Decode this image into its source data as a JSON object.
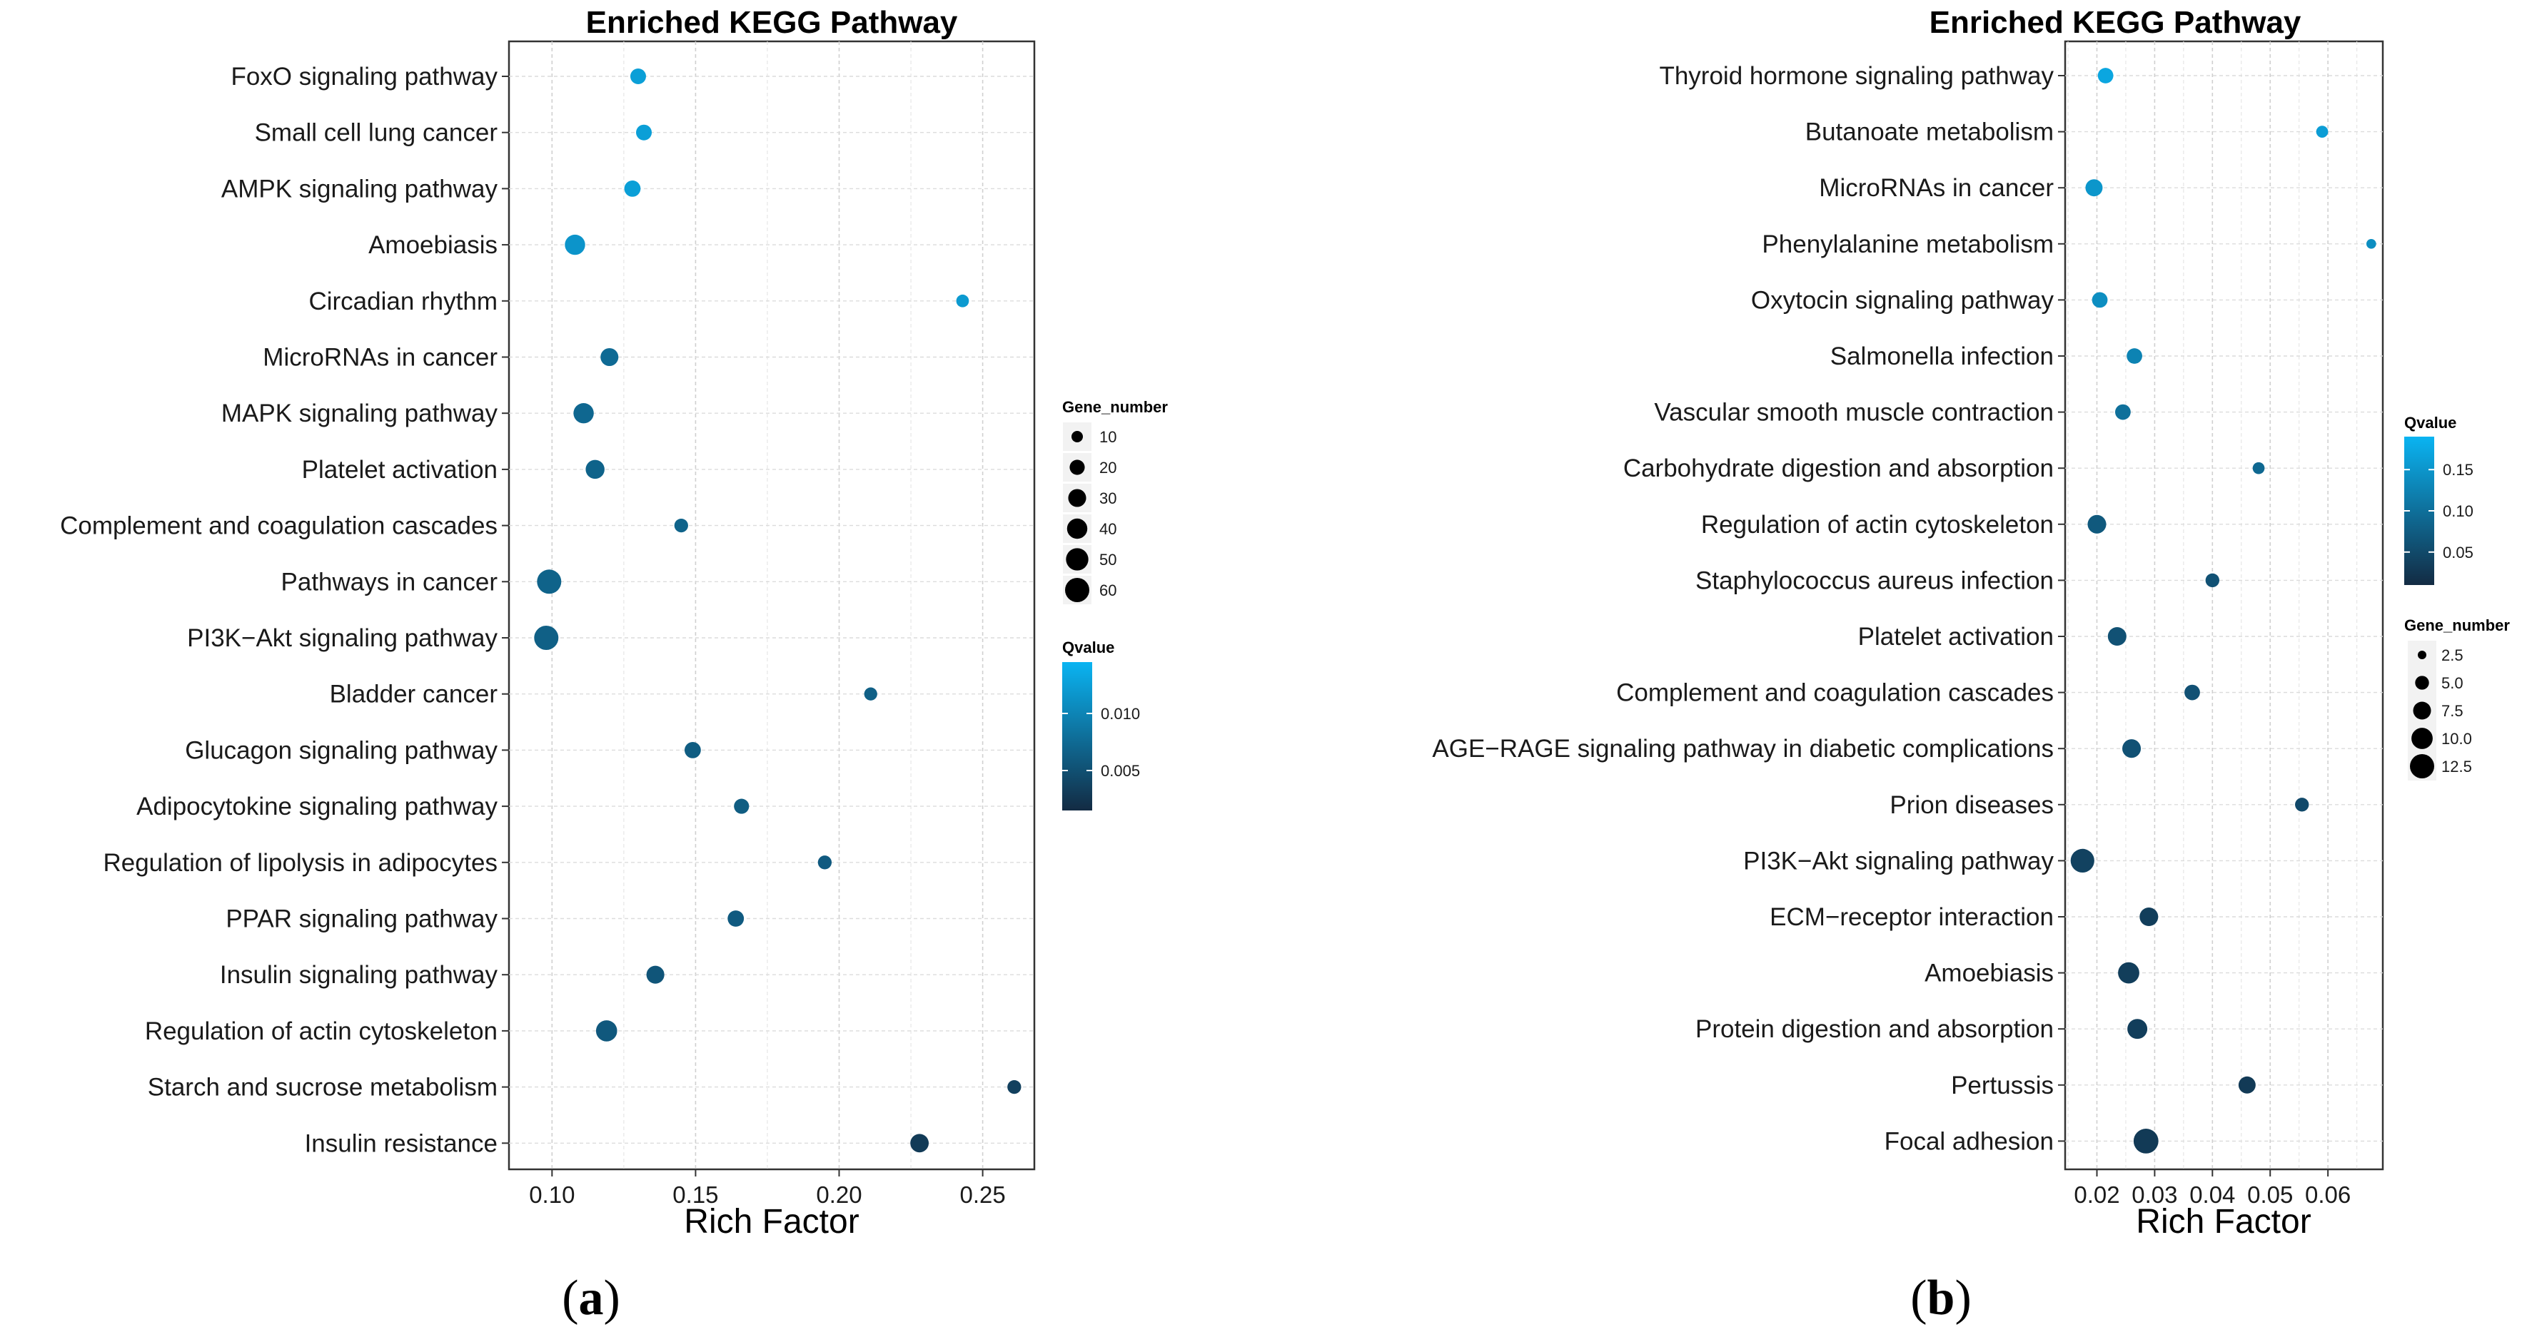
{
  "chart_data": [
    {
      "type": "scatter",
      "panel_label": "(a)",
      "panel_label_letter": "a",
      "title": "Enriched KEGG Pathway",
      "xlabel": "Rich Factor",
      "ylabel": "",
      "xlim": [
        0.085,
        0.268
      ],
      "xticks": [
        0.1,
        0.15,
        0.2,
        0.25
      ],
      "xtick_labels": [
        "0.10",
        "0.15",
        "0.20",
        "0.25"
      ],
      "grid": true,
      "categories": [
        "FoxO signaling pathway",
        "Small cell lung cancer",
        "AMPK signaling pathway",
        "Amoebiasis",
        "Circadian rhythm",
        "MicroRNAs in cancer",
        "MAPK signaling pathway",
        "Platelet activation",
        "Complement and coagulation cascades",
        "Pathways in cancer",
        "PI3K−Akt signaling pathway",
        "Bladder cancer",
        "Glucagon signaling pathway",
        "Adipocytokine signaling pathway",
        "Regulation of lipolysis in adipocytes",
        "PPAR signaling pathway",
        "Insulin signaling pathway",
        "Regulation of actin cytoskeleton",
        "Starch and sucrose metabolism",
        "Insulin resistance"
      ],
      "rich_factor": [
        0.13,
        0.132,
        0.128,
        0.108,
        0.243,
        0.12,
        0.111,
        0.115,
        0.145,
        0.099,
        0.098,
        0.211,
        0.149,
        0.166,
        0.195,
        0.164,
        0.136,
        0.119,
        0.261,
        0.228
      ],
      "gene_number": [
        22,
        22,
        24,
        40,
        13,
        30,
        40,
        34,
        16,
        60,
        60,
        14,
        24,
        20,
        16,
        24,
        30,
        44,
        16,
        32
      ],
      "qvalue": [
        0.0125,
        0.0125,
        0.0125,
        0.0115,
        0.012,
        0.0075,
        0.0072,
        0.0068,
        0.0068,
        0.0068,
        0.0065,
        0.0065,
        0.0062,
        0.0062,
        0.006,
        0.006,
        0.0055,
        0.0058,
        0.0035,
        0.003
      ],
      "size_legend": {
        "title": "Gene_number",
        "values": [
          10,
          20,
          30,
          40,
          50,
          60
        ],
        "labels": [
          "10",
          "20",
          "30",
          "40",
          "50",
          "60"
        ]
      },
      "color_legend": {
        "title": "Qvalue",
        "range": [
          0.0015,
          0.0145
        ],
        "ticks": [
          0.01,
          0.005
        ],
        "tick_labels": [
          "0.010",
          "0.005"
        ],
        "low_color": "#132B43",
        "high_color": "#0AB4F2"
      }
    },
    {
      "type": "scatter",
      "panel_label": "(b)",
      "panel_label_letter": "b",
      "title": "Enriched KEGG Pathway",
      "xlabel": "Rich Factor",
      "ylabel": "",
      "xlim": [
        0.0145,
        0.0695
      ],
      "xticks": [
        0.02,
        0.03,
        0.04,
        0.05,
        0.06
      ],
      "xtick_labels": [
        "0.02",
        "0.03",
        "0.04",
        "0.05",
        "0.06"
      ],
      "grid": true,
      "categories": [
        "Thyroid hormone signaling pathway",
        "Butanoate metabolism",
        "MicroRNAs in cancer",
        "Phenylalanine metabolism",
        "Oxytocin signaling pathway",
        "Salmonella infection",
        "Vascular smooth muscle contraction",
        "Carbohydrate digestion and absorption",
        "Regulation of actin cytoskeleton",
        "Staphylococcus aureus infection",
        "Platelet activation",
        "Complement and coagulation cascades",
        "AGE−RAGE signaling pathway in diabetic complications",
        "Prion diseases",
        "PI3K−Akt signaling pathway",
        "ECM−receptor interaction",
        "Amoebiasis",
        "Protein digestion and absorption",
        "Pertussis",
        "Focal adhesion"
      ],
      "rich_factor": [
        0.0215,
        0.059,
        0.0195,
        0.0675,
        0.0205,
        0.0265,
        0.0245,
        0.048,
        0.02,
        0.04,
        0.0235,
        0.0365,
        0.026,
        0.0555,
        0.0175,
        0.029,
        0.0255,
        0.027,
        0.046,
        0.0285
      ],
      "gene_number": [
        6,
        4,
        7,
        3,
        6,
        6,
        6,
        4,
        8,
        5,
        8,
        6,
        8,
        5,
        12,
        8,
        10,
        9,
        7,
        13
      ],
      "qvalue": [
        0.172,
        0.16,
        0.15,
        0.14,
        0.14,
        0.125,
        0.1,
        0.09,
        0.07,
        0.06,
        0.06,
        0.06,
        0.06,
        0.05,
        0.04,
        0.035,
        0.035,
        0.035,
        0.03,
        0.03
      ],
      "size_legend": {
        "title": "Gene_number",
        "values": [
          2.5,
          5.0,
          7.5,
          10.0,
          12.5
        ],
        "labels": [
          "2.5",
          "5.0",
          "7.5",
          "10.0",
          "12.5"
        ]
      },
      "color_legend": {
        "title": "Qvalue",
        "range": [
          0.01,
          0.19
        ],
        "ticks": [
          0.15,
          0.1,
          0.05
        ],
        "tick_labels": [
          "0.15",
          "0.10",
          "0.05"
        ],
        "low_color": "#132B43",
        "high_color": "#0AB4F2"
      }
    }
  ]
}
